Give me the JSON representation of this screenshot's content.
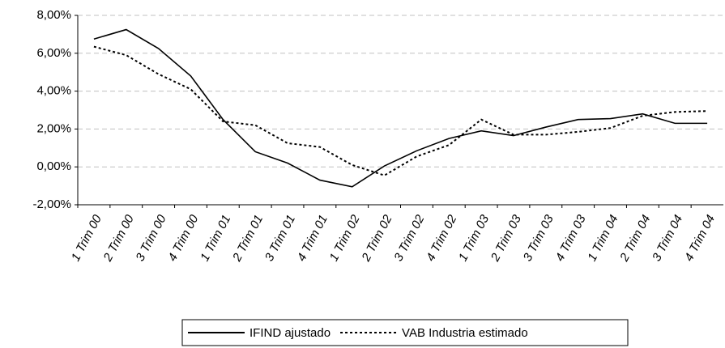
{
  "chart_data": {
    "type": "line",
    "categories": [
      "1 Trim 00",
      "2 Trim 00",
      "3 Trim 00",
      "4 Trim 00",
      "1 Trim 01",
      "2 Trim 01",
      "3 Trim 01",
      "4 Trim 01",
      "1 Trim 02",
      "2 Trim 02",
      "3 Trim 02",
      "4 Trim 02",
      "1 Trim 03",
      "2 Trim 03",
      "3 Trim 03",
      "4 Trim 03",
      "1 Trim 04",
      "2 Trim 04",
      "3 Trim 04",
      "4 Trim 04"
    ],
    "series": [
      {
        "name": "IFIND ajustado",
        "color": "#000000",
        "dash": "solid",
        "values": [
          6.75,
          7.25,
          6.25,
          4.8,
          2.5,
          0.8,
          0.2,
          -0.7,
          -1.05,
          0.05,
          0.85,
          1.5,
          1.9,
          1.65,
          2.1,
          2.5,
          2.55,
          2.8,
          2.3,
          2.3
        ]
      },
      {
        "name": "VAB Industria estimado",
        "color": "#000000",
        "dash": "dotted",
        "values": [
          6.35,
          5.9,
          4.9,
          4.1,
          2.4,
          2.2,
          1.25,
          1.05,
          0.1,
          -0.45,
          0.55,
          1.15,
          2.5,
          1.7,
          1.7,
          1.85,
          2.05,
          2.7,
          2.9,
          2.95
        ]
      }
    ],
    "ylim": [
      -2,
      8
    ],
    "yticks": [
      {
        "value": -2,
        "label": "-2,00%"
      },
      {
        "value": 0,
        "label": "0,00%"
      },
      {
        "value": 2,
        "label": "2,00%"
      },
      {
        "value": 4,
        "label": "4,00%"
      },
      {
        "value": 6,
        "label": "6,00%"
      },
      {
        "value": 8,
        "label": "8,00%"
      }
    ],
    "grid": true,
    "legend": "bottom"
  }
}
